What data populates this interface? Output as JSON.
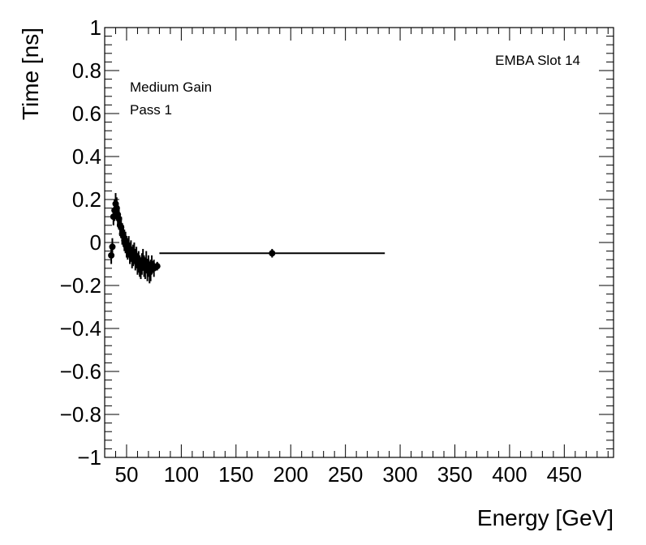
{
  "chart_data": {
    "type": "scatter",
    "title": "",
    "xlabel": "Energy [GeV]",
    "ylabel": "Time [ns]",
    "xlim": [
      30,
      495
    ],
    "ylim": [
      -1,
      1
    ],
    "xticks": [
      50,
      100,
      150,
      200,
      250,
      300,
      350,
      400,
      450
    ],
    "xtick_labels": [
      "50",
      "100",
      "150",
      "200",
      "250",
      "300",
      "350",
      "400",
      "450"
    ],
    "yticks": [
      1,
      0.8,
      0.6,
      0.4,
      0.2,
      0,
      -0.2,
      -0.4,
      -0.6,
      -0.8,
      -1
    ],
    "ytick_labels": [
      "1",
      "0.8",
      "0.6",
      "0.4",
      "0.2",
      "0",
      "−0.2",
      "−0.4",
      "−0.6",
      "−0.8",
      "−1"
    ],
    "grid": false,
    "annotations": [
      "Medium Gain",
      "Pass 1",
      "EMBA Slot 14"
    ],
    "series": [
      {
        "color": "#000000",
        "points": [
          {
            "x": 36,
            "y": -0.06,
            "yerr": 0.04,
            "xerr": 0.5
          },
          {
            "x": 37,
            "y": -0.02,
            "yerr": 0.04,
            "xerr": 0.5
          },
          {
            "x": 38,
            "y": 0.12,
            "yerr": 0.04,
            "xerr": 0.5
          },
          {
            "x": 39,
            "y": 0.15,
            "yerr": 0.05,
            "xerr": 0.5
          },
          {
            "x": 40,
            "y": 0.18,
            "yerr": 0.05,
            "xerr": 0.5
          },
          {
            "x": 41,
            "y": 0.16,
            "yerr": 0.05,
            "xerr": 0.5
          },
          {
            "x": 42,
            "y": 0.13,
            "yerr": 0.05,
            "xerr": 0.5
          },
          {
            "x": 43,
            "y": 0.11,
            "yerr": 0.05,
            "xerr": 0.5
          },
          {
            "x": 44,
            "y": 0.08,
            "yerr": 0.05,
            "xerr": 0.5
          },
          {
            "x": 45,
            "y": 0.07,
            "yerr": 0.05,
            "xerr": 0.5
          },
          {
            "x": 46,
            "y": 0.04,
            "yerr": 0.05,
            "xerr": 0.5
          },
          {
            "x": 47,
            "y": 0.03,
            "yerr": 0.05,
            "xerr": 0.5
          },
          {
            "x": 48,
            "y": 0.01,
            "yerr": 0.05,
            "xerr": 0.5
          },
          {
            "x": 49,
            "y": 0.0,
            "yerr": 0.05,
            "xerr": 0.5
          },
          {
            "x": 50,
            "y": -0.02,
            "yerr": 0.05,
            "xerr": 0.5
          },
          {
            "x": 51,
            "y": -0.03,
            "yerr": 0.05,
            "xerr": 0.5
          },
          {
            "x": 52,
            "y": -0.02,
            "yerr": 0.05,
            "xerr": 0.5
          },
          {
            "x": 53,
            "y": -0.05,
            "yerr": 0.05,
            "xerr": 0.5
          },
          {
            "x": 54,
            "y": -0.04,
            "yerr": 0.05,
            "xerr": 0.5
          },
          {
            "x": 55,
            "y": -0.07,
            "yerr": 0.05,
            "xerr": 0.5
          },
          {
            "x": 56,
            "y": -0.06,
            "yerr": 0.05,
            "xerr": 0.5
          },
          {
            "x": 57,
            "y": -0.05,
            "yerr": 0.05,
            "xerr": 0.5
          },
          {
            "x": 58,
            "y": -0.08,
            "yerr": 0.05,
            "xerr": 0.5
          },
          {
            "x": 59,
            "y": -0.07,
            "yerr": 0.05,
            "xerr": 0.5
          },
          {
            "x": 60,
            "y": -0.1,
            "yerr": 0.05,
            "xerr": 0.5
          },
          {
            "x": 61,
            "y": -0.09,
            "yerr": 0.05,
            "xerr": 0.5
          },
          {
            "x": 62,
            "y": -0.11,
            "yerr": 0.05,
            "xerr": 0.5
          },
          {
            "x": 63,
            "y": -0.12,
            "yerr": 0.05,
            "xerr": 0.5
          },
          {
            "x": 64,
            "y": -0.1,
            "yerr": 0.05,
            "xerr": 0.5
          },
          {
            "x": 65,
            "y": -0.08,
            "yerr": 0.05,
            "xerr": 0.5
          },
          {
            "x": 66,
            "y": -0.11,
            "yerr": 0.05,
            "xerr": 0.5
          },
          {
            "x": 67,
            "y": -0.12,
            "yerr": 0.05,
            "xerr": 0.5
          },
          {
            "x": 68,
            "y": -0.09,
            "yerr": 0.05,
            "xerr": 0.5
          },
          {
            "x": 69,
            "y": -0.13,
            "yerr": 0.05,
            "xerr": 0.5
          },
          {
            "x": 70,
            "y": -0.11,
            "yerr": 0.05,
            "xerr": 0.5
          },
          {
            "x": 71,
            "y": -0.14,
            "yerr": 0.05,
            "xerr": 0.5
          },
          {
            "x": 72,
            "y": -0.13,
            "yerr": 0.05,
            "xerr": 0.5
          },
          {
            "x": 73,
            "y": -0.1,
            "yerr": 0.04,
            "xerr": 0.5
          },
          {
            "x": 75,
            "y": -0.12,
            "yerr": 0.04,
            "xerr": 0.5
          },
          {
            "x": 78,
            "y": -0.11,
            "yerr": 0.02,
            "xerr": 1
          },
          {
            "x": 183,
            "y": -0.05,
            "yerr": 0.02,
            "xerr": 103
          }
        ]
      }
    ]
  }
}
